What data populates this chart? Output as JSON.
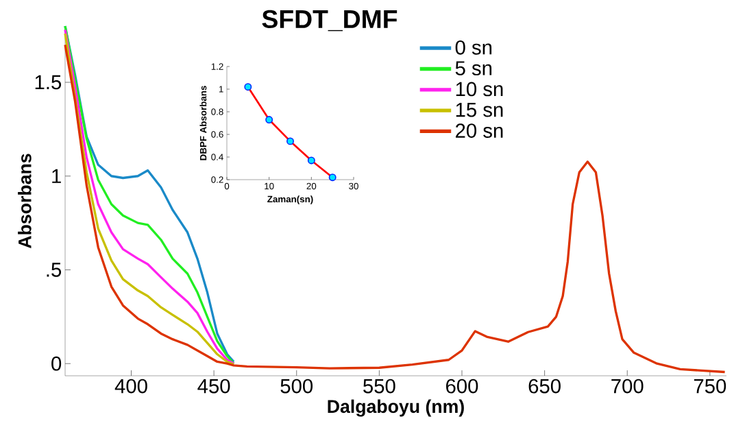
{
  "chart_data": [
    {
      "type": "line",
      "title": "SFDT_DMF",
      "xlabel": "Dalgaboyu (nm)",
      "ylabel": "Absorbans",
      "x": [
        360,
        366,
        373,
        380,
        388,
        395,
        404,
        410,
        418,
        425,
        434,
        440,
        446,
        452,
        458,
        462,
        470,
        500,
        520,
        550,
        570,
        592,
        600,
        608,
        615,
        628,
        640,
        652,
        657,
        661,
        664,
        667,
        671,
        676,
        681,
        685,
        689,
        693,
        697,
        704,
        718,
        732,
        759
      ],
      "series": [
        {
          "name": "0 sn",
          "color": "#1a8ac8",
          "values": [
            1.8,
            1.54,
            1.21,
            1.06,
            1.0,
            0.99,
            1.0,
            1.03,
            0.94,
            0.82,
            0.7,
            0.56,
            0.38,
            0.16,
            0.05,
            0.01,
            null,
            null,
            null,
            null,
            null,
            null,
            null,
            null,
            null,
            null,
            null,
            null,
            null,
            null,
            null,
            null,
            null,
            null,
            null,
            null,
            null,
            null,
            null,
            null,
            null,
            null,
            null
          ]
        },
        {
          "name": "5 sn",
          "color": "#22ee22",
          "values": [
            1.8,
            1.52,
            1.2,
            0.98,
            0.85,
            0.79,
            0.75,
            0.74,
            0.66,
            0.56,
            0.48,
            0.38,
            0.25,
            0.12,
            0.04,
            0.0,
            null,
            null,
            null,
            null,
            null,
            null,
            null,
            null,
            null,
            null,
            null,
            null,
            null,
            null,
            null,
            null,
            null,
            null,
            null,
            null,
            null,
            null,
            null,
            null,
            null,
            null,
            null
          ]
        },
        {
          "name": "10 sn",
          "color": "#ff22ee",
          "values": [
            1.78,
            1.48,
            1.1,
            0.85,
            0.7,
            0.61,
            0.56,
            0.53,
            0.46,
            0.4,
            0.33,
            0.27,
            0.17,
            0.08,
            0.02,
            0.0,
            null,
            null,
            null,
            null,
            null,
            null,
            null,
            null,
            null,
            null,
            null,
            null,
            null,
            null,
            null,
            null,
            null,
            null,
            null,
            null,
            null,
            null,
            null,
            null,
            null,
            null,
            null
          ]
        },
        {
          "name": "15 sn",
          "color": "#c8c000",
          "values": [
            1.76,
            1.42,
            1.02,
            0.72,
            0.55,
            0.45,
            0.39,
            0.36,
            0.3,
            0.26,
            0.21,
            0.17,
            0.11,
            0.05,
            0.01,
            -0.005,
            null,
            null,
            null,
            null,
            null,
            null,
            null,
            null,
            null,
            null,
            null,
            null,
            null,
            null,
            null,
            null,
            null,
            null,
            null,
            null,
            null,
            null,
            null,
            null,
            null,
            null,
            null
          ]
        },
        {
          "name": "20 sn",
          "color": "#dd3300",
          "values": [
            1.7,
            1.4,
            0.95,
            0.62,
            0.41,
            0.31,
            0.24,
            0.21,
            0.16,
            0.13,
            0.1,
            0.07,
            0.04,
            0.01,
            0.0,
            -0.01,
            -0.015,
            -0.02,
            -0.025,
            -0.022,
            -0.005,
            0.02,
            0.07,
            0.173,
            0.143,
            0.117,
            0.168,
            0.198,
            0.25,
            0.36,
            0.545,
            0.85,
            1.02,
            1.077,
            1.02,
            0.79,
            0.48,
            0.28,
            0.13,
            0.058,
            0.0,
            -0.03,
            -0.045
          ]
        }
      ],
      "xlim": [
        360,
        760
      ],
      "ylim": [
        -0.065,
        1.8
      ],
      "xticks": [
        400,
        450,
        500,
        550,
        600,
        650,
        700,
        750
      ],
      "yticks": [
        0,
        {
          "value": 0.5,
          "label": ".5"
        },
        1,
        1.5
      ],
      "legend": "top",
      "grid": false
    },
    {
      "type": "line",
      "xlabel": "Zaman(sn)",
      "ylabel": "DBPF Absorbans",
      "x": [
        5,
        10,
        15,
        20,
        25
      ],
      "series": [
        {
          "color": "#ff0000",
          "colors": [
            "#00e5ff",
            "#00e5ff",
            "#00e5ff",
            "#00e5ff",
            "#00e5ff"
          ],
          "values": [
            1.02,
            0.73,
            0.54,
            0.37,
            0.22
          ]
        }
      ],
      "xlim": [
        0,
        30
      ],
      "ylim": [
        0.2,
        1.2
      ],
      "xticks": [
        0,
        10,
        20,
        30
      ],
      "yticks": [
        0.2,
        0.4,
        0.6,
        0.8,
        1,
        1.2
      ],
      "marker": "circle",
      "grid": false
    }
  ]
}
